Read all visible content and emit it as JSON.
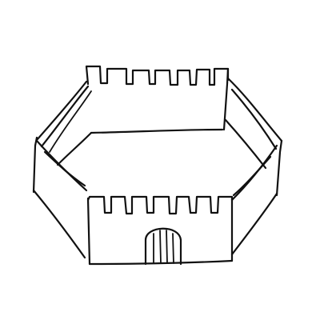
{
  "drawing": {
    "subject": "castle-fortress-sketch",
    "colors": {
      "ink": "#111111",
      "paper": "#ffffff"
    }
  }
}
